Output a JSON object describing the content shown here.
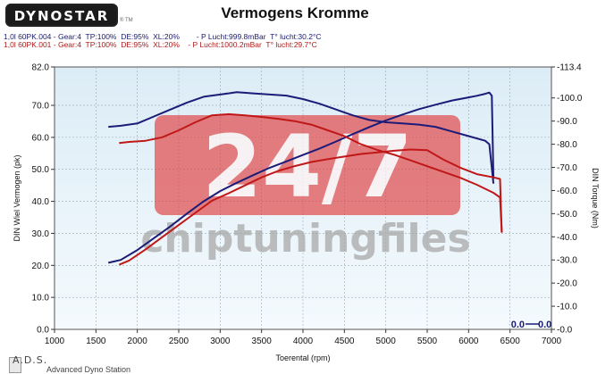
{
  "header": {
    "logo_text": "DYNOSTAR",
    "trademark": "® TM",
    "title": "Vermogens Kromme",
    "run1": "1,0l 60PK.004 - Gear:4  TP:100%  DE:95%  XL:20%        - P Lucht:999.8mBar  T° lucht:30.2°C",
    "run2": "1,0l 60PK.001 - Gear:4  TP:100%  DE:95%  XL:20%    - P Lucht:1000.2mBar  T° lucht:29.7°C"
  },
  "footer": {
    "brand": "A.D.S.",
    "subtitle": "Advanced Dyno Station"
  },
  "watermark": {
    "big": "24/7",
    "word": "chiptuningfiles"
  },
  "colors": {
    "run_blue": "#1c1c78",
    "run_red": "#c01818",
    "plot_bg": "#dcecf6",
    "watermark_red": "#e03838"
  },
  "chart_data": {
    "type": "line",
    "title": "Vermogens Kromme",
    "xlabel": "Toerental (rpm)",
    "ylabel": "DIN Wiel Vermogen (pk)",
    "y2label": "DIN Torque (Nm)",
    "xlim": [
      1000,
      7000
    ],
    "ylim": [
      0.0,
      82.0
    ],
    "y2lim": [
      0.0,
      113.4
    ],
    "x_ticks": [
      "1000",
      "1500",
      "2000",
      "2500",
      "3000",
      "3500",
      "4000",
      "4500",
      "5000",
      "5500",
      "6000",
      "6500",
      "7000"
    ],
    "y_ticks": [
      "0.0",
      "10.0",
      "20.0",
      "30.0",
      "40.0",
      "50.0",
      "60.0",
      "70.0",
      "82.0"
    ],
    "y2_ticks": [
      "-0.0",
      "-10.0",
      "-20.0",
      "-30.0",
      "-40.0",
      "-50.0",
      "-60.0",
      "-70.0",
      "-80.0",
      "-90.0",
      "-100.0",
      "-113.4"
    ],
    "grid": true,
    "series": [
      {
        "name": "1,0l 60PK.004",
        "kind": "power",
        "axis": "y",
        "color": "#1c1c78",
        "x": [
          1650,
          1800,
          2000,
          2200,
          2400,
          2600,
          2800,
          3000,
          3200,
          3400,
          3600,
          3800,
          4000,
          4200,
          4400,
          4600,
          4800,
          5000,
          5200,
          5400,
          5600,
          5800,
          6000,
          6100,
          6200,
          6250,
          6280,
          6300
        ],
        "y": [
          20.8,
          21.7,
          24.8,
          28.5,
          32.2,
          36.2,
          40.0,
          43.2,
          45.8,
          48.2,
          50.5,
          52.5,
          54.5,
          56.5,
          58.7,
          61.0,
          63.2,
          65.3,
          67.1,
          68.8,
          70.2,
          71.5,
          72.5,
          73.0,
          73.6,
          74.0,
          73.0,
          47.0
        ]
      },
      {
        "name": "1,0l 60PK.004",
        "kind": "torque",
        "axis": "y2",
        "color": "#1c1c78",
        "x": [
          1650,
          1800,
          2000,
          2200,
          2400,
          2600,
          2800,
          3000,
          3200,
          3400,
          3600,
          3800,
          4000,
          4200,
          4400,
          4600,
          4800,
          5000,
          5200,
          5400,
          5600,
          5800,
          6000,
          6200,
          6250,
          6300
        ],
        "y": [
          87.5,
          88.0,
          89.0,
          92.0,
          95.0,
          98.0,
          100.5,
          101.5,
          102.5,
          102.0,
          101.5,
          101.0,
          99.5,
          97.5,
          95.0,
          92.5,
          90.5,
          89.5,
          89.0,
          88.5,
          87.5,
          85.5,
          83.5,
          81.5,
          80.0,
          63.0
        ]
      },
      {
        "name": "1,0l 60PK.001",
        "kind": "power",
        "axis": "y",
        "color": "#c01818",
        "x": [
          1780,
          1900,
          2100,
          2300,
          2500,
          2700,
          2900,
          3100,
          3300,
          3500,
          3700,
          3900,
          4100,
          4300,
          4500,
          4700,
          4900,
          5100,
          5300,
          5500,
          5700,
          5900,
          6100,
          6300,
          6380,
          6400
        ],
        "y": [
          20.2,
          21.5,
          25.0,
          28.8,
          32.6,
          36.4,
          40.2,
          42.5,
          45.0,
          47.5,
          49.5,
          51.0,
          52.3,
          53.2,
          54.0,
          54.8,
          55.3,
          55.8,
          56.2,
          56.0,
          53.0,
          50.5,
          48.5,
          47.5,
          47.0,
          30.2
        ]
      },
      {
        "name": "1,0l 60PK.001",
        "kind": "torque",
        "axis": "y2",
        "color": "#c01818",
        "x": [
          1780,
          1900,
          2100,
          2300,
          2500,
          2700,
          2900,
          3100,
          3300,
          3500,
          3700,
          3900,
          4100,
          4300,
          4500,
          4700,
          4900,
          5100,
          5300,
          5500,
          5700,
          5900,
          6100,
          6300,
          6380,
          6400
        ],
        "y": [
          80.5,
          81.0,
          81.5,
          83.0,
          86.0,
          89.5,
          92.5,
          93.0,
          92.5,
          91.8,
          91.0,
          90.0,
          88.5,
          86.0,
          83.5,
          80.0,
          77.5,
          75.5,
          73.0,
          70.5,
          68.0,
          65.5,
          62.5,
          59.0,
          57.0,
          42.0
        ]
      }
    ],
    "readouts": [
      {
        "label": "0.0",
        "color": "#1c1c78"
      },
      {
        "label": "0.0",
        "color": "#1c1c78"
      }
    ]
  }
}
